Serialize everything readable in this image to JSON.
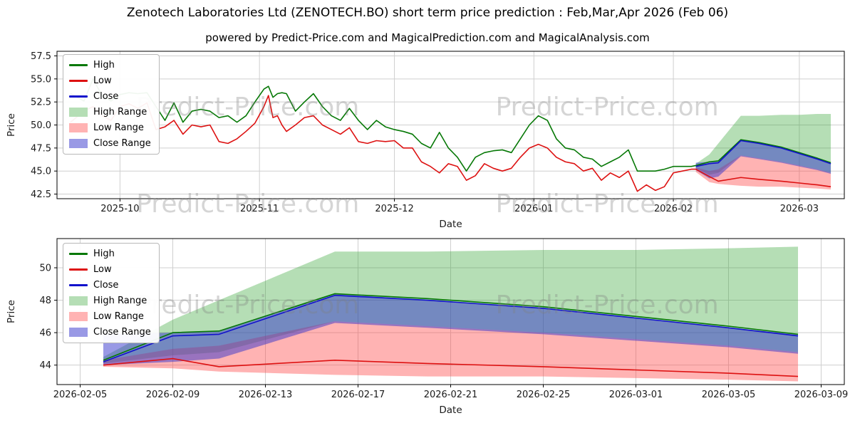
{
  "title": "Zenotech Laboratories Ltd (ZENOTECH.BO) short term price prediction : Feb,Mar,Apr 2026 (Feb 06)",
  "subtitle": "powered by Predict-Price.com and MagicalPrediction.com and MagicalAnalysis.com",
  "watermark": "Predict-Price.com",
  "colors": {
    "grid": "#cfcfcf",
    "axis": "#000000",
    "watermark_text": "rgba(128,128,128,0.33)"
  },
  "legend": {
    "entries": [
      {
        "label": "High",
        "type": "line",
        "color": "#067806"
      },
      {
        "label": "Low",
        "type": "line",
        "color": "#dd1111"
      },
      {
        "label": "Close",
        "type": "line",
        "color": "#1111cc"
      },
      {
        "label": "High Range",
        "type": "patch",
        "color": "#b5deb5"
      },
      {
        "label": "Low Range",
        "type": "patch",
        "color": "#ffb3b3"
      },
      {
        "label": "Close Range",
        "type": "patch",
        "color": "#9999e5"
      }
    ]
  },
  "chart_data": [
    {
      "name": "historical-and-prediction",
      "type": "line",
      "xlabel": "Date",
      "ylabel": "Price",
      "xlim": [
        -3,
        172
      ],
      "ylim": [
        42.0,
        58.0
      ],
      "x_ticks": [
        {
          "pos": 11,
          "label": "2025-10"
        },
        {
          "pos": 42,
          "label": "2025-11"
        },
        {
          "pos": 72,
          "label": "2025-12"
        },
        {
          "pos": 103,
          "label": "2026-01"
        },
        {
          "pos": 134,
          "label": "2026-02"
        },
        {
          "pos": 162,
          "label": "2026-03"
        }
      ],
      "y_ticks": [
        {
          "pos": 42.5,
          "label": "42.5"
        },
        {
          "pos": 45.0,
          "label": "45.0"
        },
        {
          "pos": 47.5,
          "label": "47.5"
        },
        {
          "pos": 50.0,
          "label": "50.0"
        },
        {
          "pos": 52.5,
          "label": "52.5"
        },
        {
          "pos": 55.0,
          "label": "55.0"
        },
        {
          "pos": 57.5,
          "label": "57.5"
        }
      ],
      "bands": [
        {
          "name": "High Range",
          "color": "#2ca02c",
          "opacity": 0.35,
          "x": [
            139,
            142,
            144,
            149,
            153,
            158,
            162,
            166,
            169
          ],
          "upper": [
            45.8,
            46.8,
            48.0,
            51.0,
            51.0,
            51.1,
            51.1,
            51.2,
            51.2
          ],
          "lower": [
            45.3,
            44.6,
            44.8,
            46.7,
            46.4,
            46.0,
            45.6,
            45.2,
            44.8
          ]
        },
        {
          "name": "Low Range",
          "color": "#ff4040",
          "opacity": 0.4,
          "x": [
            139,
            142,
            144,
            149,
            153,
            158,
            162,
            166,
            169
          ],
          "upper": [
            45.4,
            45.0,
            45.2,
            46.7,
            46.4,
            46.0,
            45.6,
            45.2,
            44.8
          ],
          "lower": [
            44.9,
            43.8,
            43.6,
            43.4,
            43.3,
            43.3,
            43.2,
            43.1,
            43.0
          ]
        },
        {
          "name": "Close Range",
          "color": "#3333cc",
          "opacity": 0.5,
          "x": [
            139,
            142,
            144,
            149,
            153,
            158,
            162,
            166,
            169
          ],
          "upper": [
            45.9,
            46.0,
            46.1,
            48.4,
            48.0,
            47.5,
            46.9,
            46.3,
            45.9
          ],
          "lower": [
            45.1,
            44.2,
            44.4,
            46.6,
            46.3,
            45.9,
            45.5,
            45.1,
            44.7
          ]
        }
      ],
      "series": [
        {
          "name": "High",
          "color": "#067806",
          "x": [
            0,
            3,
            5,
            7,
            9,
            11,
            13,
            15,
            17,
            19,
            21,
            23,
            25,
            27,
            29,
            31,
            33,
            35,
            37,
            39,
            41,
            43,
            44,
            45,
            46,
            47,
            48,
            50,
            52,
            54,
            56,
            58,
            60,
            62,
            64,
            66,
            68,
            70,
            72,
            74,
            76,
            78,
            80,
            82,
            84,
            86,
            88,
            90,
            92,
            94,
            96,
            98,
            100,
            102,
            104,
            106,
            108,
            110,
            112,
            114,
            116,
            118,
            120,
            122,
            124,
            126,
            128,
            130,
            132,
            134,
            136,
            138,
            139,
            142,
            144,
            149,
            153,
            158,
            162,
            166,
            169
          ],
          "y": [
            53.4,
            52.6,
            55.0,
            53.2,
            52.6,
            53.3,
            53.5,
            53.4,
            53.5,
            52.0,
            50.5,
            52.4,
            50.3,
            51.5,
            51.7,
            51.5,
            50.8,
            51.0,
            50.3,
            51.0,
            52.5,
            53.9,
            54.2,
            53.0,
            53.4,
            53.5,
            53.4,
            51.5,
            52.5,
            53.4,
            52.0,
            51.0,
            50.5,
            51.8,
            50.5,
            49.5,
            50.5,
            49.8,
            49.5,
            49.3,
            49.0,
            48.0,
            47.5,
            49.2,
            47.5,
            46.5,
            45.0,
            46.5,
            47.0,
            47.2,
            47.3,
            47.0,
            48.5,
            50.0,
            51.0,
            50.5,
            48.5,
            47.5,
            47.3,
            46.5,
            46.3,
            45.5,
            46.0,
            46.5,
            47.3,
            45.0,
            45.0,
            45.0,
            45.2,
            45.5,
            45.5,
            45.5,
            45.6,
            46.0,
            46.1,
            48.4,
            48.1,
            47.6,
            47.0,
            46.4,
            45.9
          ]
        },
        {
          "name": "Low",
          "color": "#dd1111",
          "x": [
            0,
            3,
            5,
            7,
            9,
            11,
            13,
            15,
            17,
            19,
            21,
            23,
            25,
            27,
            29,
            31,
            33,
            35,
            37,
            39,
            41,
            43,
            44,
            45,
            46,
            47,
            48,
            50,
            52,
            54,
            56,
            58,
            60,
            62,
            64,
            66,
            68,
            70,
            72,
            74,
            76,
            78,
            80,
            82,
            84,
            86,
            88,
            90,
            92,
            94,
            96,
            98,
            100,
            102,
            104,
            106,
            108,
            110,
            112,
            114,
            116,
            118,
            120,
            122,
            124,
            126,
            128,
            130,
            132,
            134,
            136,
            138,
            139,
            142,
            144,
            149,
            153,
            158,
            162,
            166,
            169
          ],
          "y": [
            50.3,
            51.5,
            52.0,
            51.0,
            50.5,
            52.0,
            52.3,
            51.8,
            52.4,
            49.5,
            49.8,
            50.5,
            49.0,
            50.0,
            49.8,
            50.0,
            48.2,
            48.0,
            48.5,
            49.3,
            50.2,
            52.0,
            53.2,
            50.8,
            51.0,
            50.0,
            49.3,
            50.0,
            50.8,
            51.0,
            50.0,
            49.5,
            49.0,
            49.7,
            48.2,
            48.0,
            48.3,
            48.2,
            48.3,
            47.5,
            47.5,
            46.0,
            45.5,
            44.8,
            45.8,
            45.5,
            44.0,
            44.5,
            45.8,
            45.3,
            45.0,
            45.3,
            46.5,
            47.5,
            47.9,
            47.5,
            46.5,
            46.0,
            45.8,
            45.0,
            45.3,
            44.0,
            44.8,
            44.3,
            45.0,
            42.8,
            43.5,
            42.9,
            43.3,
            44.8,
            45.0,
            45.2,
            45.2,
            44.4,
            43.9,
            44.3,
            44.1,
            43.9,
            43.7,
            43.5,
            43.3
          ]
        },
        {
          "name": "Close",
          "color": "#1111cc",
          "x": [
            139,
            142,
            144,
            149,
            153,
            158,
            162,
            166,
            169
          ],
          "y": [
            45.5,
            45.8,
            45.9,
            48.3,
            48.0,
            47.5,
            46.9,
            46.3,
            45.8
          ]
        }
      ]
    },
    {
      "name": "prediction-zoom",
      "type": "line",
      "xlabel": "Date",
      "ylabel": "Price",
      "xlim": [
        -2,
        32
      ],
      "ylim": [
        42.8,
        51.8
      ],
      "x_ticks": [
        {
          "pos": -1,
          "label": "2026-02-05"
        },
        {
          "pos": 3,
          "label": "2026-02-09"
        },
        {
          "pos": 7,
          "label": "2026-02-13"
        },
        {
          "pos": 11,
          "label": "2026-02-17"
        },
        {
          "pos": 15,
          "label": "2026-02-21"
        },
        {
          "pos": 19,
          "label": "2026-02-25"
        },
        {
          "pos": 23,
          "label": "2026-03-01"
        },
        {
          "pos": 27,
          "label": "2026-03-05"
        },
        {
          "pos": 31,
          "label": "2026-03-09"
        }
      ],
      "y_ticks": [
        {
          "pos": 44,
          "label": "44"
        },
        {
          "pos": 46,
          "label": "46"
        },
        {
          "pos": 48,
          "label": "48"
        },
        {
          "pos": 50,
          "label": "50"
        }
      ],
      "bands": [
        {
          "name": "High Range",
          "color": "#2ca02c",
          "opacity": 0.35,
          "x": [
            0,
            3,
            5,
            10,
            14,
            19,
            23,
            27,
            30
          ],
          "upper": [
            44.5,
            46.8,
            48.0,
            51.0,
            51.0,
            51.1,
            51.1,
            51.2,
            51.3
          ],
          "lower": [
            44.1,
            44.6,
            44.8,
            46.7,
            46.4,
            46.0,
            45.6,
            45.2,
            44.8
          ]
        },
        {
          "name": "Low Range",
          "color": "#ff4040",
          "opacity": 0.4,
          "x": [
            0,
            3,
            5,
            10,
            14,
            19,
            23,
            27,
            30
          ],
          "upper": [
            44.3,
            45.0,
            45.2,
            46.7,
            46.4,
            46.0,
            45.6,
            45.2,
            44.8
          ],
          "lower": [
            43.9,
            43.8,
            43.6,
            43.4,
            43.3,
            43.3,
            43.2,
            43.1,
            43.0
          ]
        },
        {
          "name": "Close Range",
          "color": "#3333cc",
          "opacity": 0.5,
          "x": [
            0,
            3,
            5,
            10,
            14,
            19,
            23,
            27,
            30
          ],
          "upper": [
            45.9,
            46.0,
            46.1,
            48.4,
            48.0,
            47.5,
            46.9,
            46.3,
            45.9
          ],
          "lower": [
            44.0,
            44.2,
            44.4,
            46.6,
            46.3,
            45.9,
            45.5,
            45.1,
            44.7
          ]
        }
      ],
      "series": [
        {
          "name": "High",
          "color": "#067806",
          "x": [
            0,
            3,
            5,
            10,
            14,
            19,
            23,
            27,
            30
          ],
          "y": [
            44.3,
            46.0,
            46.1,
            48.4,
            48.1,
            47.6,
            47.0,
            46.4,
            45.9
          ]
        },
        {
          "name": "Low",
          "color": "#dd1111",
          "x": [
            0,
            3,
            5,
            10,
            14,
            19,
            23,
            27,
            30
          ],
          "y": [
            44.0,
            44.4,
            43.9,
            44.3,
            44.1,
            43.9,
            43.7,
            43.5,
            43.3
          ]
        },
        {
          "name": "Close",
          "color": "#1111cc",
          "x": [
            0,
            3,
            5,
            10,
            14,
            19,
            23,
            27,
            30
          ],
          "y": [
            44.2,
            45.8,
            45.9,
            48.3,
            48.0,
            47.5,
            46.9,
            46.3,
            45.8
          ]
        }
      ]
    }
  ]
}
